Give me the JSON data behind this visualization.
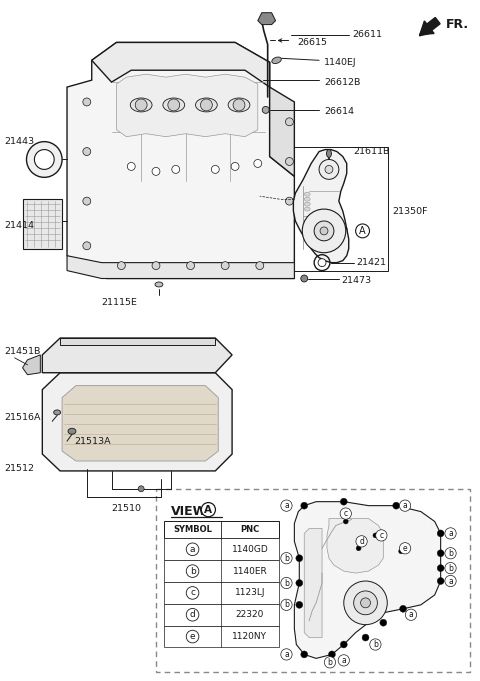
{
  "bg_color": "#ffffff",
  "figsize": [
    4.8,
    6.81
  ],
  "dpi": 100,
  "table_data": {
    "symbols": [
      "a",
      "b",
      "c",
      "d",
      "e"
    ],
    "pncs": [
      "1140GD",
      "1140ER",
      "1123LJ",
      "22320",
      "1120NY"
    ]
  }
}
